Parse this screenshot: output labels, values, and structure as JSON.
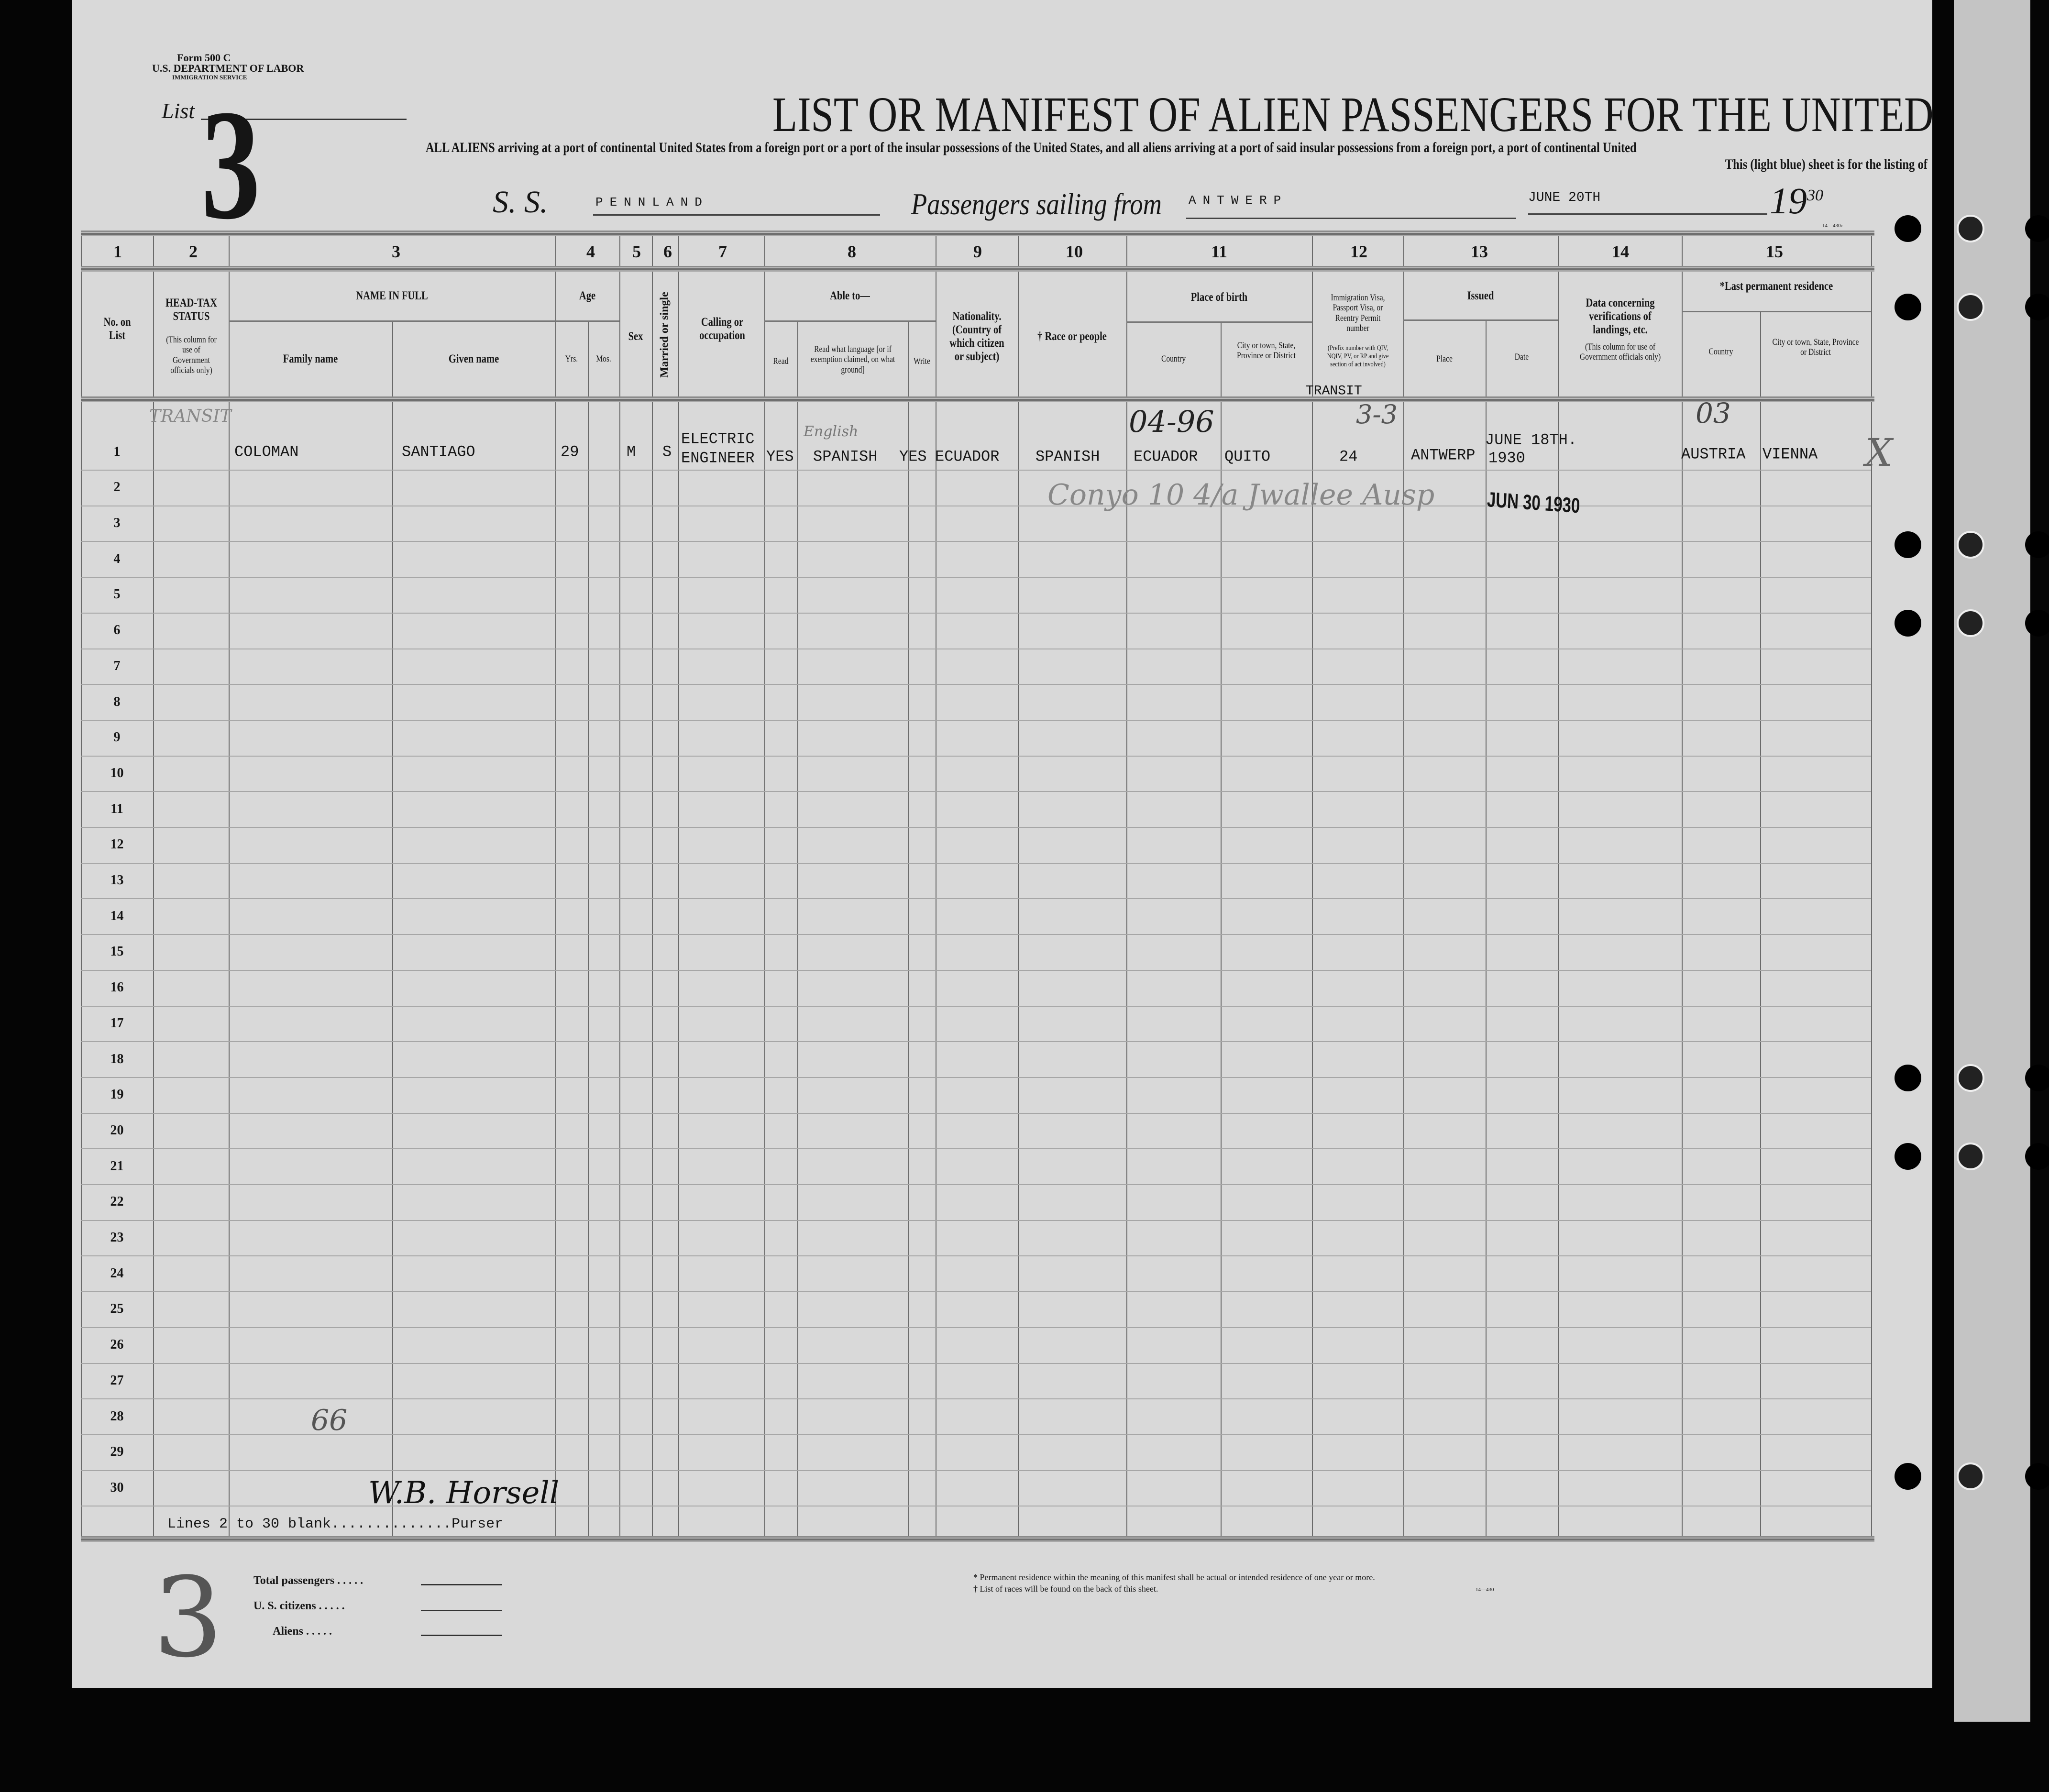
{
  "form": {
    "number": "Form 500 C",
    "department": "U.S. DEPARTMENT OF LABOR",
    "service": "IMMIGRATION SERVICE",
    "list_label": "List",
    "list_number": "3"
  },
  "title": "LIST OR MANIFEST OF ALIEN PASSENGERS FOR THE UNITED",
  "subtitle_1": "ALL ALIENS arriving at a port of continental United States from a foreign port or a port of the insular possessions of the United States, and all aliens arriving at a port of said insular possessions from a foreign port, a port of continental United",
  "subtitle_2": "This (light blue) sheet is for the listing of",
  "voyage": {
    "ss_label": "S. S.",
    "ship": "PENNLAND",
    "sailing_label": "Passengers sailing from",
    "port": "ANTWERP",
    "date": "JUNE 20TH",
    "year_prefix": "19",
    "year_suffix": "30"
  },
  "columns": {
    "numbers": [
      "1",
      "2",
      "3",
      "4",
      "5",
      "6",
      "7",
      "8",
      "9",
      "10",
      "11",
      "12",
      "13",
      "14",
      "15"
    ],
    "no": "No. on List",
    "headtax": "HEAD-TAX STATUS",
    "headtax_note": "(This column for use of Government officials only)",
    "name": "NAME IN FULL",
    "family": "Family name",
    "given": "Given name",
    "age": "Age",
    "yrs": "Yrs.",
    "mos": "Mos.",
    "sex": "Sex",
    "married": "Married or single",
    "calling": "Calling or occupation",
    "able": "Able to—",
    "read": "Read",
    "read_lang": "Read what language [or if exemption claimed, on what ground]",
    "write": "Write",
    "nationality": "Nationality. (Country of which citizen or subject)",
    "race": "† Race or people",
    "birth": "Place of birth",
    "birth_country": "Country",
    "birth_city": "City or town, State, Province or District",
    "visa": "Immigration Visa, Passport Visa, or Reentry Permit number",
    "visa_note": "(Prefix number with QIV, NQIV, PV, or RP and give section of act involved)",
    "issued": "Issued",
    "issued_place": "Place",
    "issued_date": "Date",
    "verif": "Data concerning verifications of landings, etc.",
    "verif_note": "(This column for use of Government officials only)",
    "residence": "*Last permanent residence",
    "res_country": "Country",
    "res_city": "City or town, State, Province or District"
  },
  "rows": [
    "1",
    "2",
    "3",
    "4",
    "5",
    "6",
    "7",
    "8",
    "9",
    "10",
    "11",
    "12",
    "13",
    "14",
    "15",
    "16",
    "17",
    "18",
    "19",
    "20",
    "21",
    "22",
    "23",
    "24",
    "25",
    "26",
    "27",
    "28",
    "29",
    "30"
  ],
  "passenger": {
    "family": "COLOMAN",
    "given": "SANTIAGO",
    "yrs": "29",
    "sex": "M",
    "married": "S",
    "calling_1": "ELECTRIC",
    "calling_2": "ENGINEER",
    "read": "YES",
    "language": "SPANISH",
    "write": "YES",
    "nationality": "ECUADOR",
    "race": "SPANISH",
    "birth_country": "ECUADOR",
    "birth_city": "QUITO",
    "visa": "24",
    "visa_typed_note": "TRANSIT",
    "issued_place": "ANTWERP",
    "issued_date_1": "JUNE 18TH.",
    "issued_date_2": "1930",
    "res_country": "AUSTRIA",
    "res_city": "VIENNA"
  },
  "annotations": {
    "headtax": "TRANSIT",
    "language_hw": "English",
    "birth_code": "04-96",
    "visa_code": "3-3",
    "res_code": "03",
    "row2_hw": "Conyo 10 4/a  Jwallee Ausp",
    "stamp": "JUN 30 1930",
    "count": "66",
    "list_hw": "3",
    "signature": "W.B. Horsell",
    "mark": "X"
  },
  "purser_line": "Lines 2 to 30 blank..............Purser",
  "footer": {
    "total": "Total passengers . . . . .",
    "citizens": "U. S. citizens . . . . .",
    "aliens": "Aliens . . . . .",
    "note_1": "* Permanent residence within the meaning of this manifest shall be actual or intended residence of one year or more.",
    "note_2": "† List of races will be found on the back of this sheet.",
    "code": "14—430",
    "corner_code": "14—430c"
  }
}
